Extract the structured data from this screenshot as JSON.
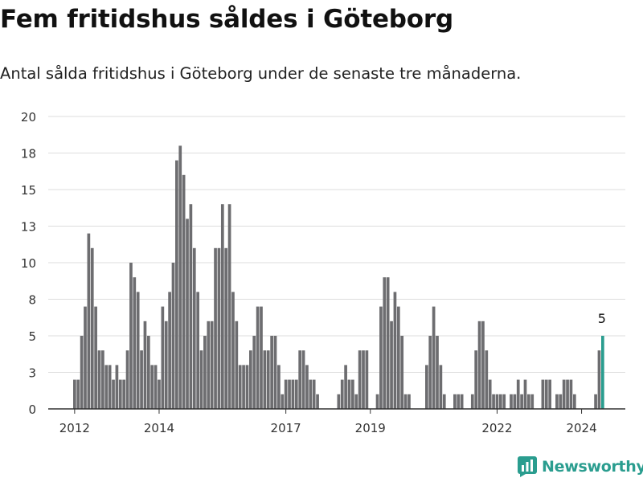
{
  "header": {
    "title": "Fem fritidshus såldes i Göteborg",
    "subtitle": "Antal sålda fritidshus i Göteborg under de senaste tre månaderna."
  },
  "brand": {
    "name": "Newsworthy",
    "icon": "chart-logo-icon"
  },
  "colors": {
    "bar": "#6d6d70",
    "highlight": "#2a9d8f",
    "grid": "#dddddd",
    "axis": "#333333"
  },
  "chart_data": {
    "type": "bar",
    "title": "Fem fritidshus såldes i Göteborg",
    "xlabel": "",
    "ylabel": "",
    "ylim": [
      0,
      20
    ],
    "y_ticks": [
      0,
      3,
      5,
      8,
      10,
      13,
      15,
      18,
      20
    ],
    "y_tick_values": [
      0,
      2.5,
      5,
      7.5,
      10,
      12.5,
      15,
      17.5,
      20
    ],
    "x_tick_labels": [
      {
        "label": "2012",
        "index": 0
      },
      {
        "label": "2014",
        "index": 24
      },
      {
        "label": "2017",
        "index": 60
      },
      {
        "label": "2019",
        "index": 84
      },
      {
        "label": "2022",
        "index": 120
      },
      {
        "label": "2024",
        "index": 144
      }
    ],
    "start": "2011-10",
    "end": "2024-06",
    "highlight_label": "5",
    "values": [
      2,
      2,
      5,
      7,
      12,
      11,
      7,
      4,
      4,
      3,
      3,
      2,
      3,
      2,
      2,
      4,
      10,
      9,
      8,
      4,
      6,
      5,
      3,
      3,
      2,
      7,
      6,
      8,
      10,
      17,
      18,
      16,
      13,
      14,
      11,
      8,
      4,
      5,
      6,
      6,
      11,
      11,
      14,
      11,
      14,
      8,
      6,
      3,
      3,
      3,
      4,
      5,
      7,
      7,
      4,
      4,
      5,
      5,
      3,
      1,
      2,
      2,
      2,
      2,
      4,
      4,
      3,
      2,
      2,
      1,
      0,
      0,
      0,
      0,
      0,
      1,
      2,
      3,
      2,
      2,
      1,
      4,
      4,
      4,
      0,
      0,
      1,
      7,
      9,
      9,
      6,
      8,
      7,
      5,
      1,
      1,
      0,
      0,
      0,
      0,
      3,
      5,
      7,
      5,
      3,
      1,
      0,
      0,
      1,
      1,
      1,
      0,
      0,
      1,
      4,
      6,
      6,
      4,
      2,
      1,
      1,
      1,
      1,
      0,
      1,
      1,
      2,
      1,
      2,
      1,
      1,
      0,
      0,
      2,
      2,
      2,
      0,
      1,
      1,
      2,
      2,
      2,
      1,
      0,
      0,
      0,
      0,
      0,
      1,
      4,
      5
    ]
  }
}
